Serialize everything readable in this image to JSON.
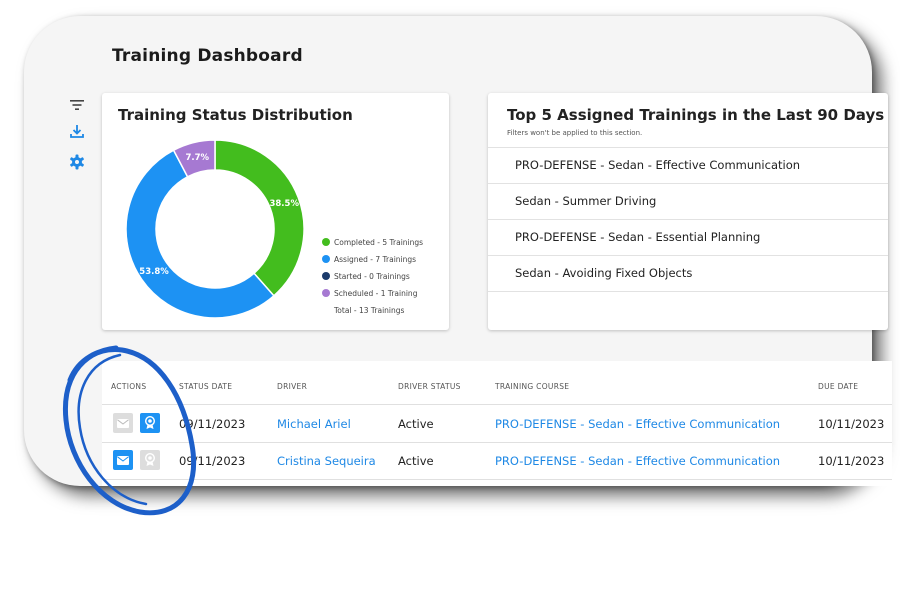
{
  "page": {
    "title": "Training Dashboard"
  },
  "sidebar": {
    "icons": [
      "filter-icon",
      "download-icon",
      "gear-icon"
    ]
  },
  "status_card": {
    "title": "Training Status Distribution",
    "slices": [
      {
        "label": "38.5%",
        "percent": 38.5,
        "color": "#43bd1e"
      },
      {
        "label": "53.8%",
        "percent": 53.8,
        "color": "#1d92f3"
      },
      {
        "label": "",
        "percent": 0,
        "color": "#1b3b6b"
      },
      {
        "label": "7.7%",
        "percent": 7.7,
        "color": "#a679d2"
      }
    ],
    "legend": [
      {
        "label": "Completed - 5 Trainings",
        "color": "#43bd1e"
      },
      {
        "label": "Assigned - 7 Trainings",
        "color": "#1d92f3"
      },
      {
        "label": "Started - 0 Trainings",
        "color": "#1b3b6b"
      },
      {
        "label": "Scheduled - 1 Training",
        "color": "#a679d2"
      }
    ],
    "total": "Total - 13 Trainings"
  },
  "chart_data": {
    "type": "pie",
    "categories": [
      "Completed",
      "Assigned",
      "Started",
      "Scheduled"
    ],
    "values": [
      38.5,
      53.8,
      0,
      7.7
    ],
    "title": "Training Status Distribution",
    "legend_position": "right"
  },
  "top5_card": {
    "title": "Top 5 Assigned Trainings in the Last 90 Days",
    "subtitle": "Filters won't be applied to this section.",
    "items": [
      "PRO-DEFENSE - Sedan - Effective Communication",
      "Sedan - Summer Driving",
      "PRO-DEFENSE - Sedan - Essential Planning",
      "Sedan - Avoiding Fixed Objects"
    ]
  },
  "table": {
    "headers": {
      "actions": "ACTIONS",
      "status_date": "STATUS DATE",
      "driver": "DRIVER",
      "driver_status": "DRIVER STATUS",
      "training_course": "TRAINING COURSE",
      "due_date": "DUE DATE"
    },
    "rows": [
      {
        "status_date": "09/11/2023",
        "driver": "Michael Ariel",
        "driver_status": "Active",
        "course": "PRO-DEFENSE - Sedan - Effective Communication",
        "due_date": "10/11/2023",
        "email_active": false,
        "cert_active": true
      },
      {
        "status_date": "09/11/2023",
        "driver": "Cristina Sequeira",
        "driver_status": "Active",
        "course": "PRO-DEFENSE - Sedan - Effective Communication",
        "due_date": "10/11/2023",
        "email_active": true,
        "cert_active": false
      }
    ]
  },
  "colors": {
    "accent": "#1e88e5",
    "button_active": "#1d92f3",
    "button_inactive": "#dddddd",
    "annotation": "#1d5fc9"
  }
}
